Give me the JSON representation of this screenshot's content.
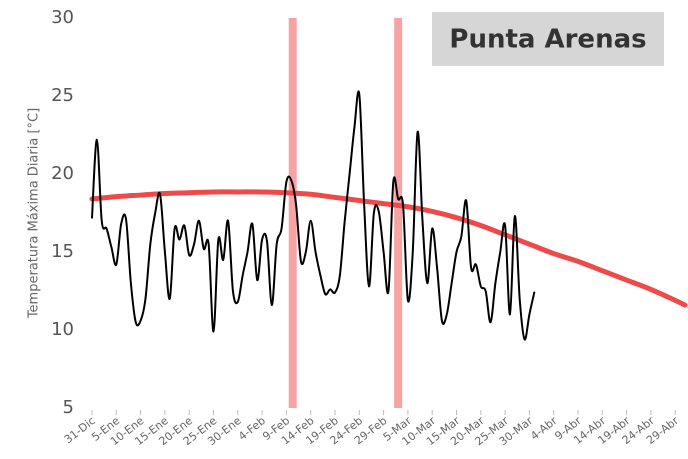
{
  "chart_data": {
    "type": "line",
    "title": "Punta Arenas",
    "y_label": "Temperatura Máxima Diaria [°C]",
    "xlim": [
      0,
      122.6
    ],
    "xticks": [
      {
        "value": 0,
        "label": "31-Dic"
      },
      {
        "value": 5,
        "label": "5-Ene"
      },
      {
        "value": 10,
        "label": "10-Ene"
      },
      {
        "value": 15,
        "label": "15-Ene"
      },
      {
        "value": 20,
        "label": "20-Ene"
      },
      {
        "value": 25,
        "label": "25-Ene"
      },
      {
        "value": 30,
        "label": "30-Ene"
      },
      {
        "value": 35,
        "label": "4-Feb"
      },
      {
        "value": 40,
        "label": "9-Feb"
      },
      {
        "value": 45,
        "label": "14-Feb"
      },
      {
        "value": 50,
        "label": "19-Feb"
      },
      {
        "value": 55,
        "label": "24-Feb"
      },
      {
        "value": 60,
        "label": "29-Feb"
      },
      {
        "value": 65,
        "label": "5-Mar"
      },
      {
        "value": 70,
        "label": "10-Mar"
      },
      {
        "value": 75,
        "label": "15-Mar"
      },
      {
        "value": 80,
        "label": "20-Mar"
      },
      {
        "value": 85,
        "label": "25-Mar"
      },
      {
        "value": 90,
        "label": "30-Mar"
      },
      {
        "value": 95,
        "label": "4-Abr"
      },
      {
        "value": 100,
        "label": "9-Abr"
      },
      {
        "value": 105,
        "label": "14-Abr"
      },
      {
        "value": 110,
        "label": "19-Abr"
      },
      {
        "value": 115,
        "label": "24-Abr"
      },
      {
        "value": 120,
        "label": "29-Abr"
      }
    ],
    "ylim": [
      5,
      30
    ],
    "yticks": [
      5,
      10,
      15,
      20,
      25,
      30
    ],
    "grid": false,
    "highlights": [
      41.3,
      63
    ],
    "highlight_color": "#f7a3a3",
    "series": [
      {
        "color": "#ee4a4a",
        "width": 5,
        "x": [
          0,
          5,
          10,
          15,
          20,
          25,
          30,
          35,
          40,
          45,
          50,
          55,
          60,
          65,
          70,
          75,
          80,
          85,
          90,
          95,
          100,
          105,
          110,
          115,
          120,
          122
        ],
        "values": [
          18.4,
          18.55,
          18.65,
          18.75,
          18.8,
          18.85,
          18.85,
          18.85,
          18.8,
          18.7,
          18.5,
          18.3,
          18.1,
          17.9,
          17.6,
          17.2,
          16.7,
          16.1,
          15.5,
          14.9,
          14.4,
          13.8,
          13.2,
          12.6,
          11.9,
          11.6
        ]
      },
      {
        "color": "#000000",
        "width": 2,
        "x": [
          0,
          1,
          2,
          3,
          4,
          5,
          6,
          7,
          8,
          9,
          10,
          11,
          12,
          13,
          14,
          15,
          16,
          17,
          18,
          19,
          20,
          21,
          22,
          23,
          24,
          25,
          26,
          27,
          28,
          29,
          30,
          31,
          32,
          33,
          34,
          35,
          36,
          37,
          38,
          39,
          40,
          41,
          42,
          43,
          44,
          45,
          46,
          47,
          48,
          49,
          50,
          51,
          52,
          53,
          54,
          55,
          56,
          57,
          58,
          59,
          60,
          61,
          62,
          63,
          64,
          65,
          66,
          67,
          68,
          69,
          70,
          71,
          72,
          73,
          74,
          75,
          76,
          77,
          78,
          79,
          80,
          81,
          82,
          83,
          84,
          85,
          86,
          87,
          88,
          89,
          90,
          91
        ],
        "values": [
          17.2,
          22.2,
          17,
          16.5,
          15.3,
          14.2,
          16.8,
          17.1,
          13,
          10.5,
          10.6,
          12,
          15.5,
          17.5,
          18.7,
          15,
          12,
          16.5,
          15.8,
          16.7,
          14.8,
          15.5,
          17,
          15.2,
          15.5,
          9.9,
          15.8,
          14.5,
          17,
          12.5,
          11.8,
          13.5,
          15,
          16.8,
          13.2,
          15.8,
          15.7,
          11.6,
          15.5,
          16.5,
          19.5,
          19.6,
          18,
          14.4,
          15,
          17,
          15,
          13.5,
          12.3,
          12.6,
          12.4,
          13.5,
          17,
          20,
          23,
          25.1,
          18,
          12.8,
          17.5,
          17.6,
          15,
          12.5,
          19.5,
          18.4,
          18,
          11.9,
          15,
          22.7,
          17,
          13,
          16.5,
          14,
          10.6,
          11,
          13,
          15,
          16,
          18.3,
          14,
          14.2,
          12.8,
          12.5,
          10.5,
          13,
          15,
          16.7,
          11,
          17.3,
          12,
          9.4,
          11,
          12.4
        ]
      }
    ]
  }
}
